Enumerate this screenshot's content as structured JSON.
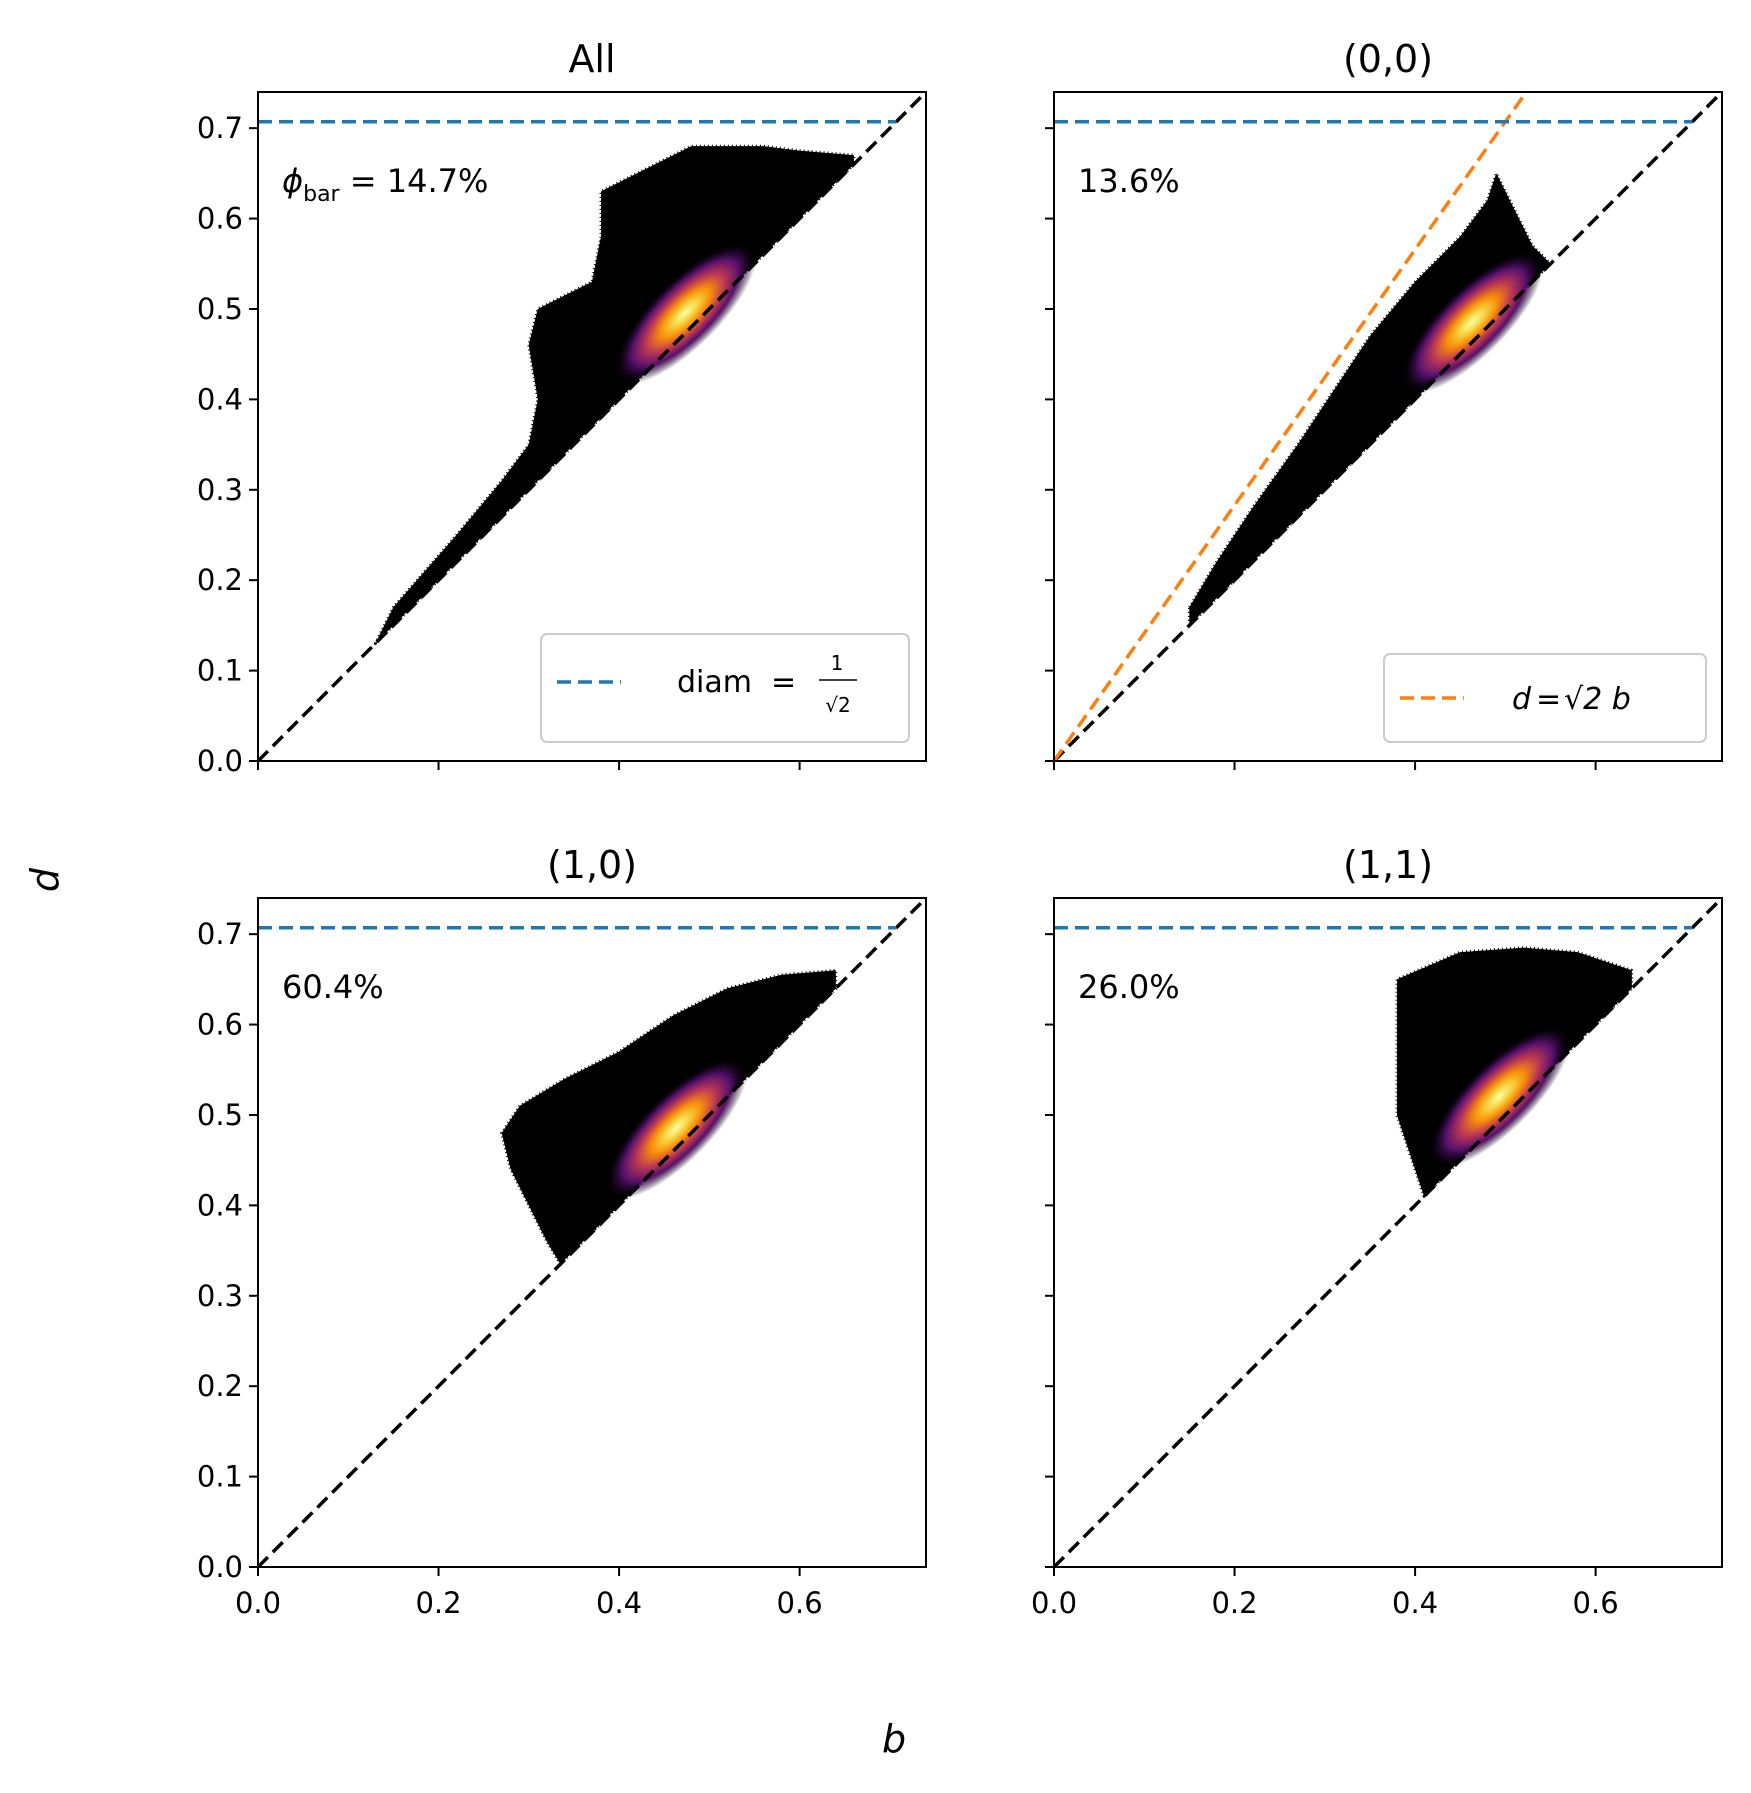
{
  "chart_data": [
    {
      "type": "scatter",
      "title": "All",
      "annotation": "14.7%",
      "annotation_symbol": "ϕ",
      "annotation_subscript": "bar",
      "legend": {
        "label": "diam",
        "eq": "=",
        "numerator": "1",
        "root": "√2",
        "color": "#1f77b4",
        "placement": "lower-right"
      },
      "density_peak": {
        "b": 0.48,
        "d": 0.5
      },
      "region_outline": [
        [
          0.13,
          0.13
        ],
        [
          0.15,
          0.17
        ],
        [
          0.22,
          0.25
        ],
        [
          0.27,
          0.31
        ],
        [
          0.3,
          0.35
        ],
        [
          0.31,
          0.4
        ],
        [
          0.3,
          0.46
        ],
        [
          0.31,
          0.5
        ],
        [
          0.35,
          0.52
        ],
        [
          0.37,
          0.53
        ],
        [
          0.38,
          0.58
        ],
        [
          0.38,
          0.63
        ],
        [
          0.42,
          0.65
        ],
        [
          0.48,
          0.68
        ],
        [
          0.56,
          0.68
        ],
        [
          0.6,
          0.675
        ],
        [
          0.66,
          0.67
        ]
      ],
      "xlim": [
        0.0,
        0.74
      ],
      "ylim": [
        0.0,
        0.74
      ]
    },
    {
      "type": "scatter",
      "title": "(0,0)",
      "annotation": "13.6%",
      "legend": {
        "lhs": "d",
        "eq": "=",
        "rhs": "√2 b",
        "color": "#ff7f0e",
        "placement": "lower-right"
      },
      "orange_line_slope": 1.4142,
      "density_peak": {
        "b": 0.47,
        "d": 0.49
      },
      "region_outline": [
        [
          0.15,
          0.17
        ],
        [
          0.18,
          0.22
        ],
        [
          0.22,
          0.28
        ],
        [
          0.27,
          0.35
        ],
        [
          0.31,
          0.41
        ],
        [
          0.35,
          0.47
        ],
        [
          0.4,
          0.53
        ],
        [
          0.45,
          0.58
        ],
        [
          0.48,
          0.62
        ],
        [
          0.49,
          0.65
        ],
        [
          0.53,
          0.57
        ],
        [
          0.55,
          0.55
        ]
      ],
      "xlim": [
        0.0,
        0.74
      ],
      "ylim": [
        0.0,
        0.74
      ]
    },
    {
      "type": "scatter",
      "title": "(1,0)",
      "annotation": "60.4%",
      "density_peak": {
        "b": 0.47,
        "d": 0.49
      },
      "region_outline": [
        [
          0.335,
          0.335
        ],
        [
          0.32,
          0.36
        ],
        [
          0.3,
          0.4
        ],
        [
          0.28,
          0.44
        ],
        [
          0.27,
          0.48
        ],
        [
          0.29,
          0.51
        ],
        [
          0.34,
          0.54
        ],
        [
          0.4,
          0.57
        ],
        [
          0.46,
          0.61
        ],
        [
          0.52,
          0.64
        ],
        [
          0.58,
          0.655
        ],
        [
          0.64,
          0.66
        ]
      ],
      "xlim": [
        0.0,
        0.74
      ],
      "ylim": [
        0.0,
        0.74
      ]
    },
    {
      "type": "scatter",
      "title": "(1,1)",
      "annotation": "26.0%",
      "density_peak": {
        "b": 0.5,
        "d": 0.525
      },
      "region_outline": [
        [
          0.41,
          0.41
        ],
        [
          0.4,
          0.44
        ],
        [
          0.38,
          0.5
        ],
        [
          0.38,
          0.58
        ],
        [
          0.38,
          0.65
        ],
        [
          0.45,
          0.68
        ],
        [
          0.52,
          0.685
        ],
        [
          0.58,
          0.68
        ],
        [
          0.64,
          0.66
        ]
      ],
      "xlim": [
        0.0,
        0.74
      ],
      "ylim": [
        0.0,
        0.74
      ]
    }
  ],
  "axes": {
    "xlabel": "b",
    "ylabel": "d",
    "xticks": [
      "0.0",
      "0.2",
      "0.4",
      "0.6"
    ],
    "yticks": [
      "0.0",
      "0.1",
      "0.2",
      "0.3",
      "0.4",
      "0.5",
      "0.6",
      "0.7"
    ],
    "xtick_values": [
      0.0,
      0.2,
      0.4,
      0.6
    ],
    "ytick_values": [
      0.0,
      0.1,
      0.2,
      0.3,
      0.4,
      0.5,
      0.6,
      0.7
    ],
    "diam_value": 0.7071,
    "diam_color": "#1f77b4",
    "diagonal_color": "#000000",
    "orange_color": "#ff7f0e"
  }
}
